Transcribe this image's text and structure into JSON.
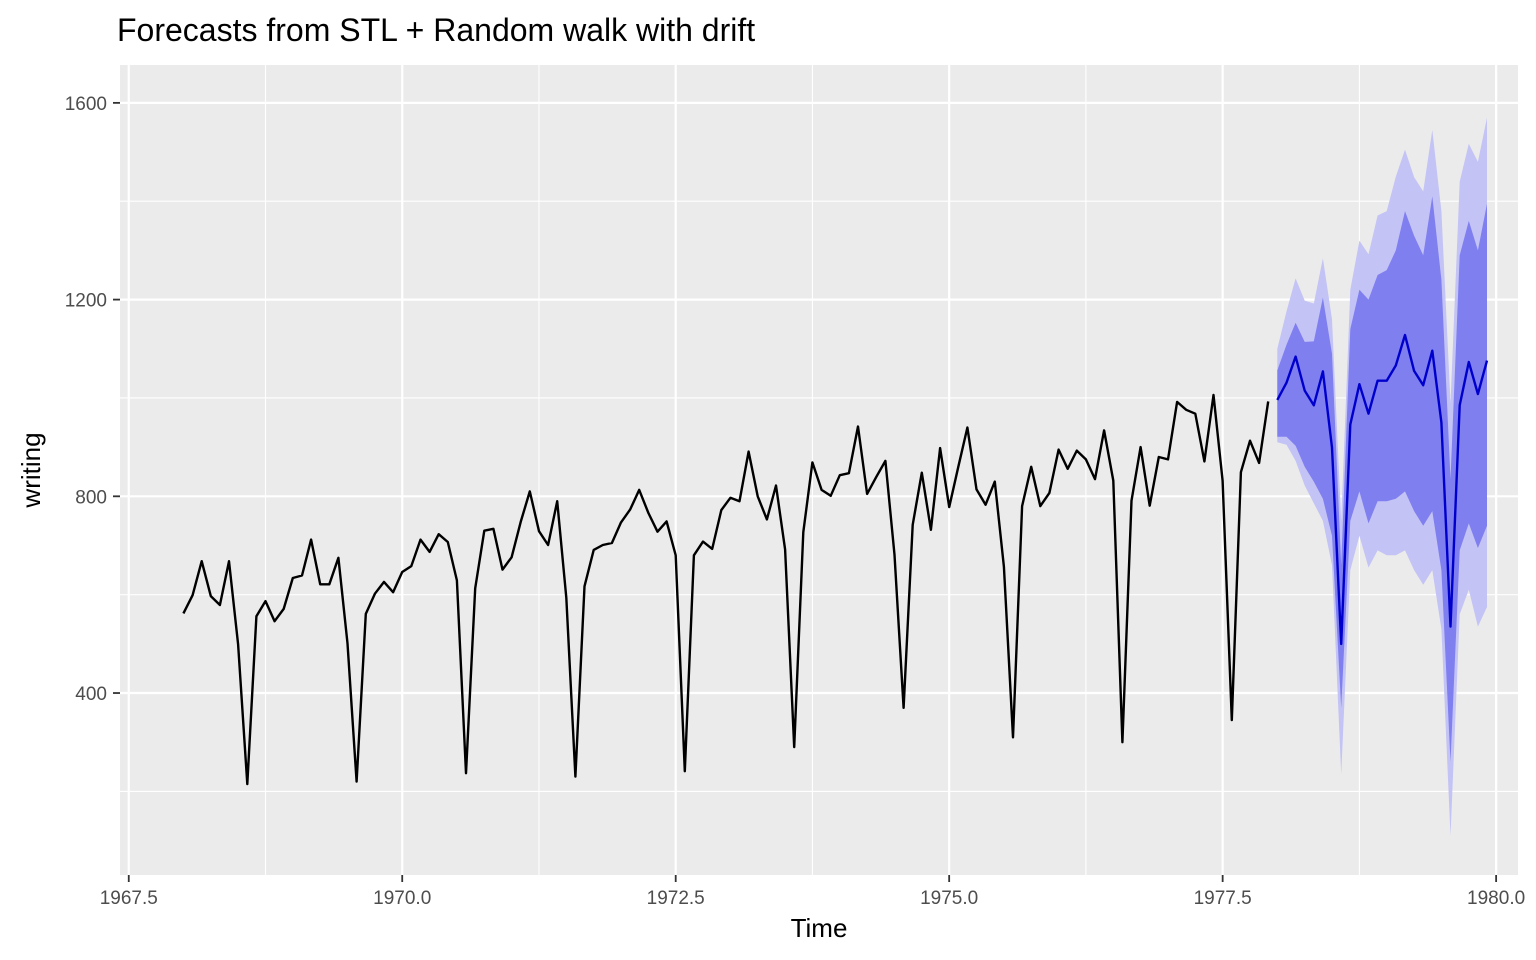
{
  "chart_data": {
    "type": "line",
    "title": "Forecasts from STL +  Random walk with drift",
    "xlabel": "Time",
    "ylabel": "writing",
    "xlim": [
      1967.42,
      1980.2
    ],
    "ylim": [
      30,
      1677
    ],
    "x_ticks": [
      1967.5,
      1970.0,
      1972.5,
      1975.0,
      1977.5,
      1980.0
    ],
    "x_tick_labels": [
      "1967.5",
      "1970.0",
      "1972.5",
      "1975.0",
      "1977.5",
      "1980.0"
    ],
    "y_ticks": [
      400,
      800,
      1200,
      1600
    ],
    "y_tick_labels": [
      "400",
      "800",
      "1200",
      "1600"
    ],
    "grid": true,
    "colors": {
      "panel": "#ebebeb",
      "grid": "#ffffff",
      "history": "#000000",
      "forecast": "#0000cc",
      "pi80": "#7f7fef",
      "pi95": "#c3c3f5"
    },
    "history": {
      "start": 1968.0,
      "frequency": 12,
      "values": [
        562,
        599,
        668,
        597,
        579,
        668,
        499,
        215,
        556,
        587,
        546,
        571,
        634,
        639,
        712,
        621,
        621,
        675,
        501,
        220,
        561,
        602,
        626,
        605,
        646,
        658,
        712,
        687,
        723,
        707,
        629,
        237,
        613,
        730,
        734,
        651,
        676,
        748,
        810,
        729,
        701,
        790,
        594,
        230,
        617,
        691,
        701,
        705,
        747,
        773,
        813,
        766,
        728,
        749,
        680,
        241,
        680,
        708,
        693,
        772,
        797,
        790,
        891,
        800,
        753,
        822,
        692,
        290,
        727,
        869,
        813,
        801,
        843,
        847,
        942,
        805,
        839,
        872,
        681,
        370,
        742,
        848,
        732,
        898,
        778,
        860,
        940,
        814,
        783,
        830,
        657,
        310,
        780,
        860,
        780,
        807,
        895,
        856,
        893,
        875,
        835,
        934,
        832,
        300,
        791,
        900,
        781,
        880,
        875,
        992,
        976,
        968,
        871,
        1006,
        832,
        345,
        849,
        913,
        868,
        993
      ]
    },
    "forecast": {
      "start": 1978.0,
      "frequency": 12,
      "mean": [
        996,
        1031,
        1084,
        1015,
        985,
        1054,
        899,
        500,
        946,
        1028,
        968,
        1035,
        1035,
        1066,
        1128,
        1055,
        1026,
        1096,
        950,
        535,
        985,
        1073,
        1008,
        1076
      ],
      "lo80": [
        921,
        921,
        903,
        860,
        830,
        795,
        720,
        370,
        750,
        810,
        745,
        790,
        790,
        795,
        810,
        770,
        740,
        770,
        650,
        260,
        690,
        745,
        695,
        740
      ],
      "hi80": [
        1056,
        1108,
        1153,
        1114,
        1115,
        1204,
        1090,
        660,
        1140,
        1220,
        1200,
        1250,
        1260,
        1300,
        1380,
        1330,
        1290,
        1410,
        1240,
        835,
        1290,
        1360,
        1300,
        1395
      ],
      "lo95": [
        910,
        905,
        872,
        822,
        786,
        750,
        660,
        235,
        650,
        720,
        655,
        690,
        680,
        680,
        690,
        650,
        620,
        650,
        530,
        110,
        560,
        610,
        535,
        575
      ],
      "hi95": [
        1100,
        1176,
        1243,
        1198,
        1192,
        1284,
        1160,
        750,
        1220,
        1320,
        1292,
        1371,
        1380,
        1450,
        1505,
        1449,
        1420,
        1545,
        1380,
        990,
        1440,
        1517,
        1480,
        1570
      ]
    }
  }
}
